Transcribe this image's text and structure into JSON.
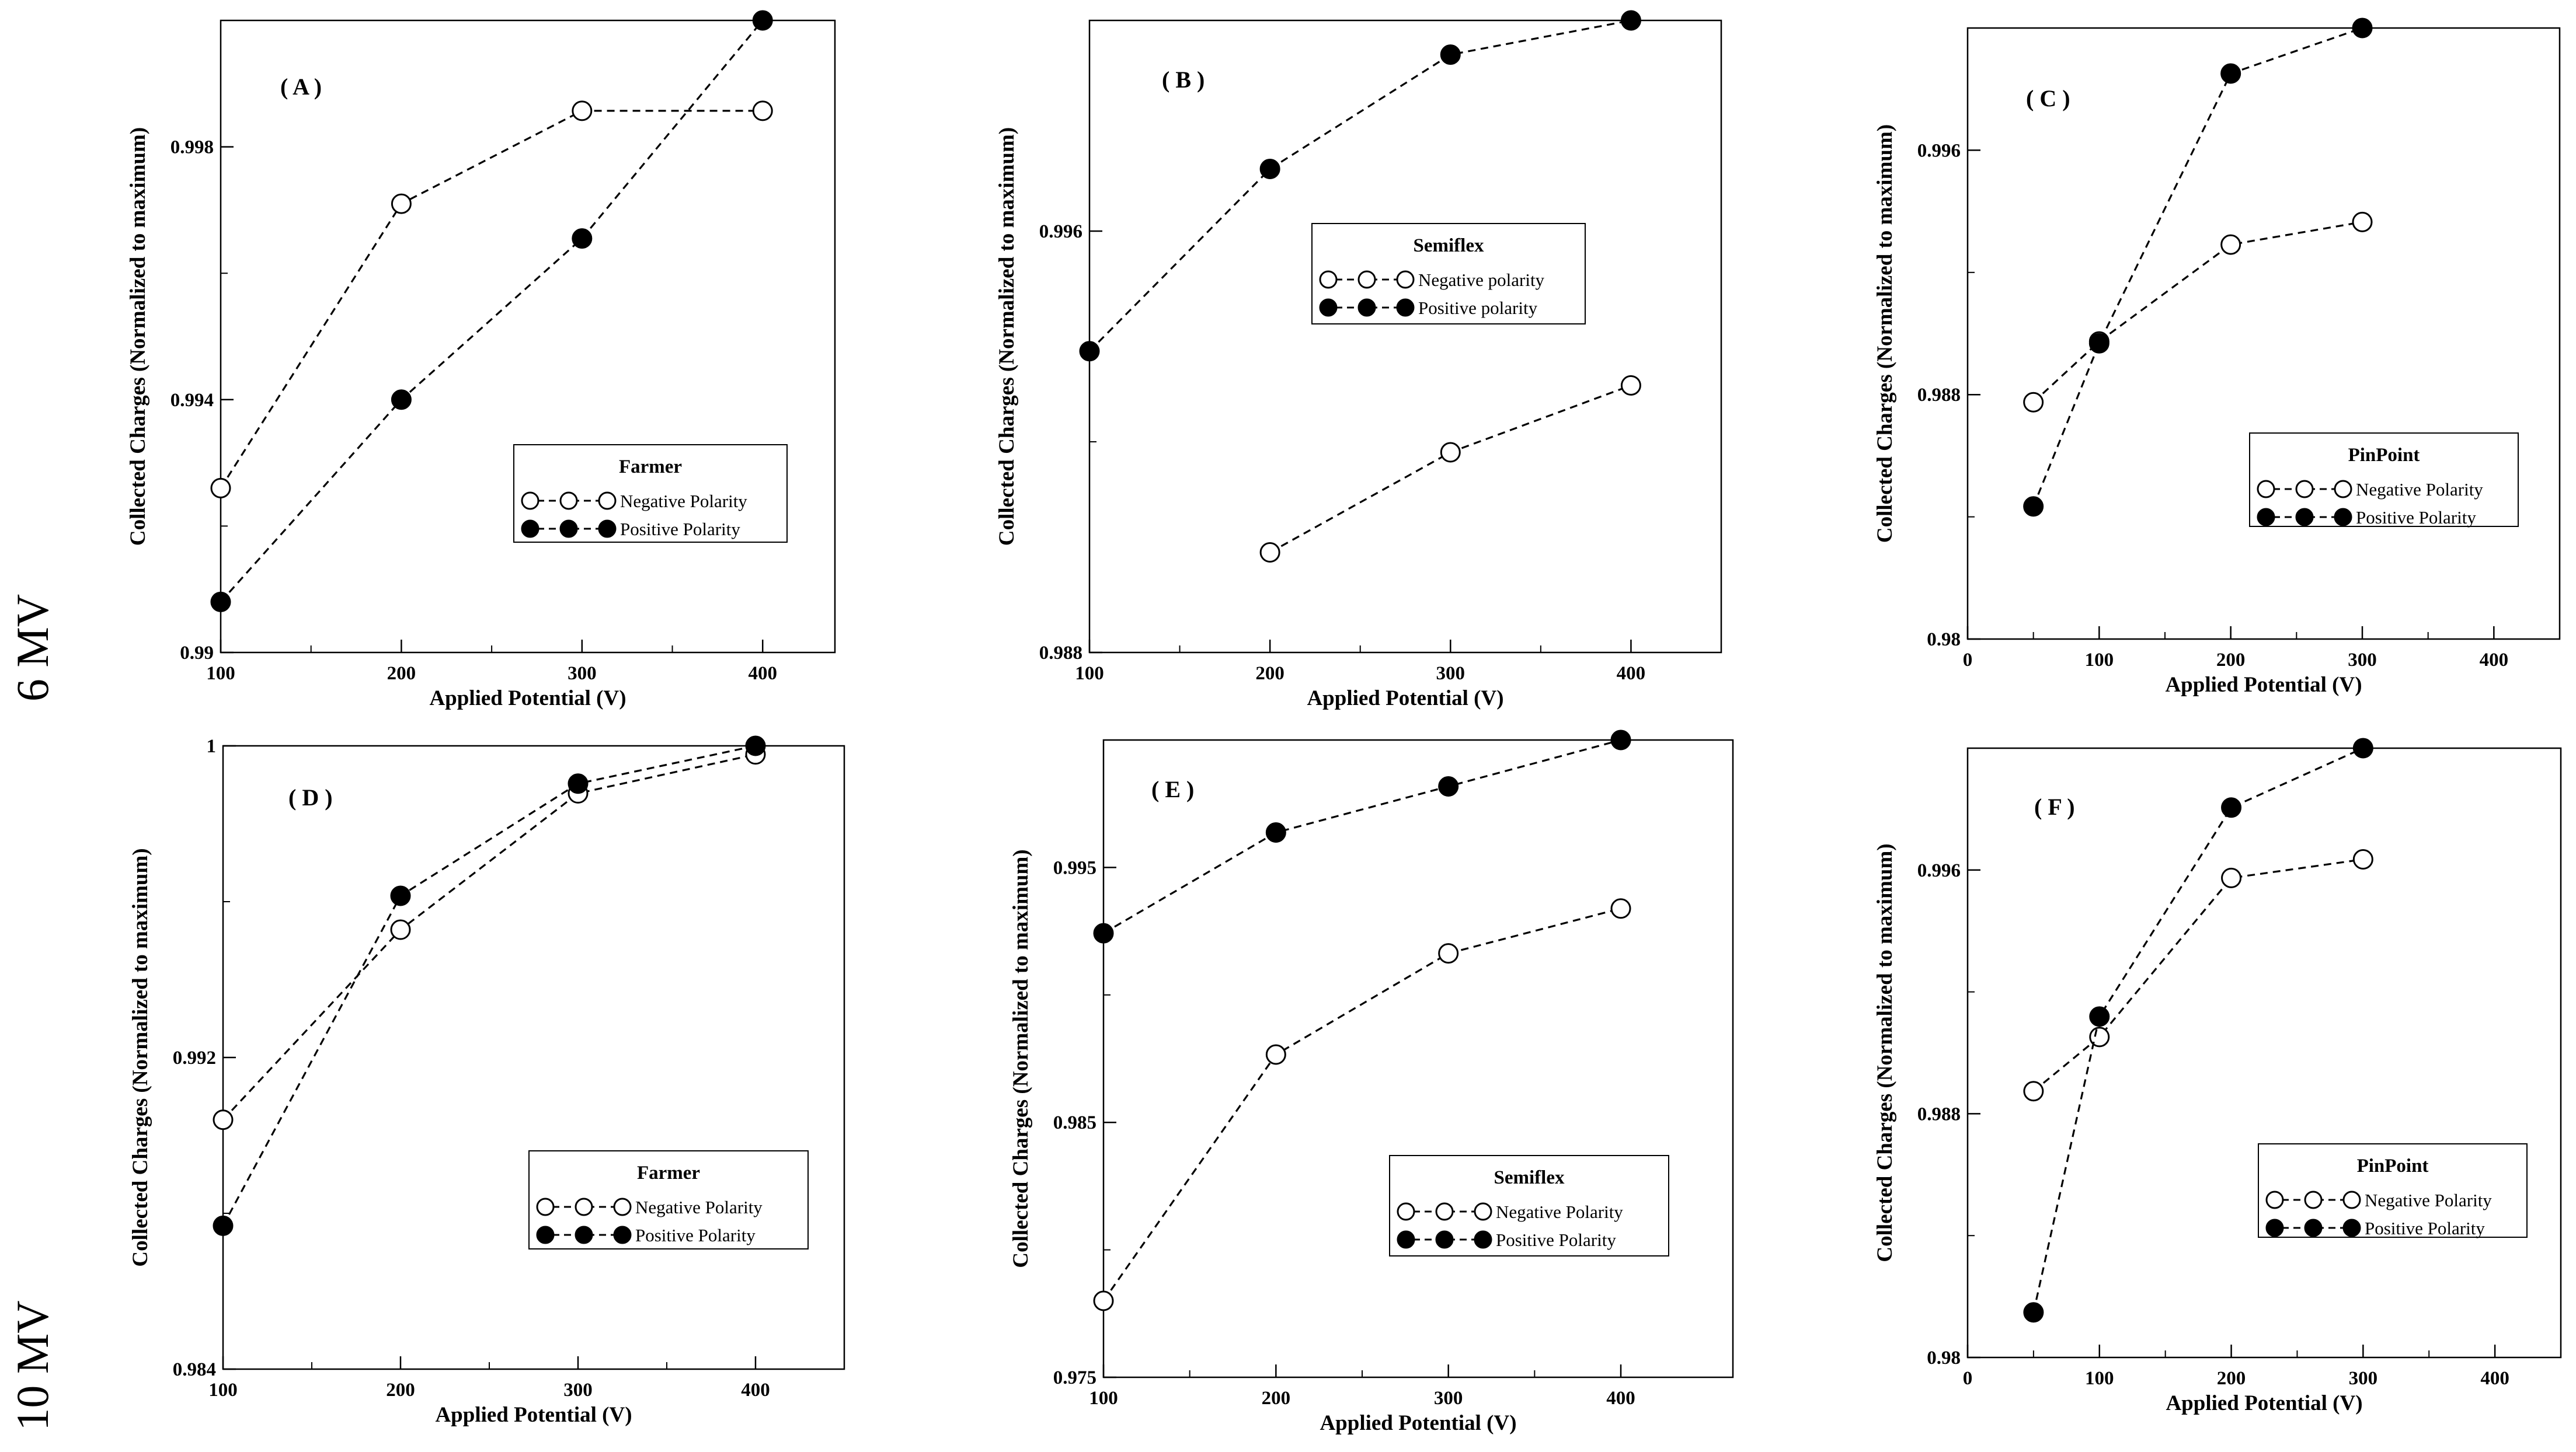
{
  "row_labels": [
    "6 MV",
    "10 MV"
  ],
  "chart_data": [
    {
      "type": "line",
      "panel": "( A )",
      "chamber": "Farmer",
      "xlabel": "Applied Potential (V)",
      "ylabel": "Collected Charges (Normalized to maximum)",
      "xlim": [
        100,
        440
      ],
      "ylim": [
        0.99,
        1.0
      ],
      "xticks": [
        100,
        200,
        300,
        400
      ],
      "xticks_minor": [
        150,
        250,
        350
      ],
      "yticks": [
        0.99,
        0.994,
        0.998
      ],
      "yticks_minor": [
        0.992,
        0.996
      ],
      "legend_title": "Farmer",
      "series": [
        {
          "name": "Negative Polarity",
          "marker": "open",
          "x": [
            100,
            200,
            300,
            400
          ],
          "y": [
            0.9926,
            0.9971,
            0.99857,
            0.99857
          ]
        },
        {
          "name": "Positive Polarity",
          "marker": "filled",
          "x": [
            100,
            200,
            300,
            400
          ],
          "y": [
            0.9908,
            0.994,
            0.99655,
            1.0
          ]
        }
      ]
    },
    {
      "type": "line",
      "panel": "( B )",
      "chamber": "Semiflex",
      "xlabel": "Applied Potential (V)",
      "ylabel": "Collected Charges (Normalized to maximum)",
      "xlim": [
        100,
        450
      ],
      "ylim": [
        0.988,
        1.0
      ],
      "xticks": [
        100,
        200,
        300,
        400
      ],
      "xticks_minor": [
        150,
        250,
        350
      ],
      "yticks": [
        0.988,
        0.996
      ],
      "yticks_minor": [
        0.992
      ],
      "legend_title": "Semiflex",
      "series": [
        {
          "name": "Negative polarity",
          "marker": "open",
          "x": [
            200,
            300,
            400
          ],
          "y": [
            0.9899,
            0.9918,
            0.99307
          ]
        },
        {
          "name": "Positive polarity",
          "marker": "filled",
          "x": [
            100,
            200,
            300,
            400
          ],
          "y": [
            0.99372,
            0.99718,
            0.99935,
            1.0
          ]
        }
      ]
    },
    {
      "type": "line",
      "panel": "( C )",
      "chamber": "PinPoint",
      "xlabel": "Applied Potential (V)",
      "ylabel": "Collected Charges (Normalized to maximum)",
      "xlim": [
        0,
        450
      ],
      "ylim": [
        0.98,
        1.0
      ],
      "xticks": [
        0,
        100,
        200,
        300,
        400
      ],
      "xticks_minor": [
        50,
        150,
        250,
        350
      ],
      "yticks": [
        0.98,
        0.988,
        0.996
      ],
      "yticks_minor": [
        0.984,
        0.992
      ],
      "legend_title": "PinPoint",
      "series": [
        {
          "name": "Negative Polarity",
          "marker": "open",
          "x": [
            50,
            100,
            200,
            300
          ],
          "y": [
            0.98775,
            0.98974,
            0.99291,
            0.99365
          ]
        },
        {
          "name": "Positive Polarity",
          "marker": "filled",
          "x": [
            50,
            100,
            200,
            300
          ],
          "y": [
            0.98434,
            0.98968,
            0.99851,
            1.0
          ]
        }
      ]
    },
    {
      "type": "line",
      "panel": "( D )",
      "chamber": "Farmer",
      "xlabel": "Applied Potential (V)",
      "ylabel": "Collected Charges (Normalized to maximum)",
      "xlim": [
        100,
        450
      ],
      "ylim": [
        0.984,
        1.0
      ],
      "xticks": [
        100,
        200,
        300,
        400
      ],
      "xticks_minor": [
        150,
        250,
        350
      ],
      "yticks": [
        0.984,
        0.992,
        1
      ],
      "yticks_minor": [
        0.988,
        0.996
      ],
      "legend_title": "Farmer",
      "series": [
        {
          "name": "Negative Polarity",
          "marker": "open",
          "x": [
            100,
            200,
            300,
            400
          ],
          "y": [
            0.9904,
            0.99528,
            0.99878,
            0.99978
          ]
        },
        {
          "name": "Positive Polarity",
          "marker": "filled",
          "x": [
            100,
            200,
            300,
            400
          ],
          "y": [
            0.98768,
            0.99615,
            0.99903,
            1.0
          ]
        }
      ]
    },
    {
      "type": "line",
      "panel": "( E )",
      "chamber": "Semiflex",
      "xlabel": "Applied Potential (V)",
      "ylabel": "Collected Charges (Normalized to maximum)",
      "xlim": [
        100,
        465
      ],
      "ylim": [
        0.975,
        1.0
      ],
      "xticks": [
        100,
        200,
        300,
        400
      ],
      "xticks_minor": [
        150,
        250,
        350
      ],
      "yticks": [
        0.975,
        0.985,
        0.995
      ],
      "yticks_minor": [
        0.98,
        0.99
      ],
      "legend_title": "Semiflex",
      "series": [
        {
          "name": "Negative Polarity",
          "marker": "open",
          "x": [
            100,
            200,
            300,
            400
          ],
          "y": [
            0.978,
            0.98766,
            0.99163,
            0.99339
          ]
        },
        {
          "name": "Positive Polarity",
          "marker": "filled",
          "x": [
            100,
            200,
            300,
            400
          ],
          "y": [
            0.99242,
            0.99637,
            0.99818,
            1.0
          ]
        }
      ]
    },
    {
      "type": "line",
      "panel": "( F )",
      "chamber": "PinPoint",
      "xlabel": "Applied Potential (V)",
      "ylabel": "Collected Charges (Normalized to maximum)",
      "xlim": [
        0,
        450
      ],
      "ylim": [
        0.98,
        1.0
      ],
      "xticks": [
        0,
        100,
        200,
        300,
        400
      ],
      "xticks_minor": [
        50,
        150,
        250,
        350
      ],
      "yticks": [
        0.98,
        0.988,
        0.996
      ],
      "yticks_minor": [
        0.984,
        0.992
      ],
      "legend_title": "PinPoint",
      "series": [
        {
          "name": "Negative Polarity",
          "marker": "open",
          "x": [
            50,
            100,
            200,
            300
          ],
          "y": [
            0.98874,
            0.99052,
            0.99574,
            0.99635
          ]
        },
        {
          "name": "Positive Polarity",
          "marker": "filled",
          "x": [
            50,
            100,
            200,
            300
          ],
          "y": [
            0.98148,
            0.99119,
            0.99805,
            1.0
          ]
        }
      ]
    }
  ]
}
